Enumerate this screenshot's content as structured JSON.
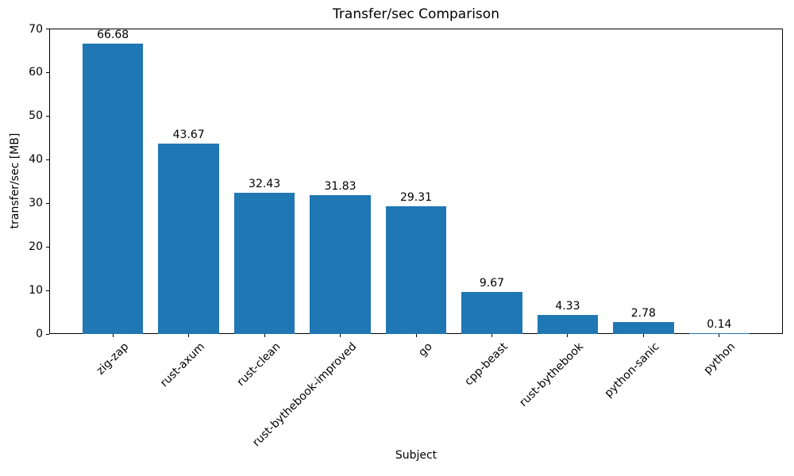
{
  "chart_data": {
    "type": "bar",
    "title": "Transfer/sec Comparison",
    "xlabel": "Subject",
    "ylabel": "transfer/sec [MB]",
    "categories": [
      "zig-zap",
      "rust-axum",
      "rust-clean",
      "rust-bythebook-improved",
      "go",
      "cpp-beast",
      "rust-bythebook",
      "python-sanic",
      "python"
    ],
    "values": [
      66.68,
      43.67,
      32.43,
      31.83,
      29.31,
      9.67,
      4.33,
      2.78,
      0.14
    ],
    "bar_value_labels": [
      "66.68",
      "43.67",
      "32.43",
      "31.83",
      "29.31",
      "9.67",
      "4.33",
      "2.78",
      "0.14"
    ],
    "yticks": [
      0,
      10,
      20,
      30,
      40,
      50,
      60,
      70
    ],
    "ylim": [
      0,
      70.1
    ],
    "xtick_rotation_deg": 45,
    "grid": false,
    "legend": null,
    "bar_color": "#1f77b4",
    "text_color": "#000000",
    "background_color": "#ffffff"
  }
}
